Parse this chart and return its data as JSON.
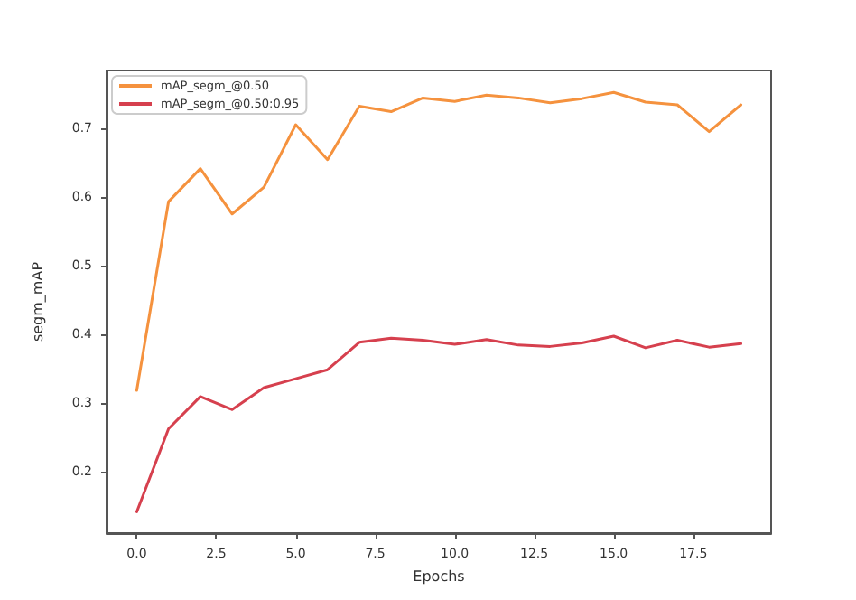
{
  "chart_data": {
    "type": "line",
    "xlabel": "Epochs",
    "ylabel": "segm_mAP",
    "x": [
      0,
      1,
      2,
      3,
      4,
      5,
      6,
      7,
      8,
      9,
      10,
      11,
      12,
      13,
      14,
      15,
      16,
      17,
      18,
      19
    ],
    "series": [
      {
        "name": "mAP_segm_@0.50",
        "color": "#f5923e",
        "values": [
          0.318,
          0.593,
          0.641,
          0.575,
          0.614,
          0.705,
          0.654,
          0.732,
          0.724,
          0.744,
          0.739,
          0.748,
          0.744,
          0.737,
          0.743,
          0.752,
          0.738,
          0.734,
          0.695,
          0.734
        ]
      },
      {
        "name": "mAP_segm_@0.50:0.95",
        "color": "#d6404e",
        "values": [
          0.141,
          0.262,
          0.309,
          0.29,
          0.322,
          0.335,
          0.348,
          0.388,
          0.394,
          0.391,
          0.385,
          0.392,
          0.384,
          0.382,
          0.387,
          0.397,
          0.38,
          0.391,
          0.381,
          0.386
        ]
      }
    ],
    "xlim": [
      -0.95,
      19.95
    ],
    "xticks": [
      {
        "value": 0,
        "label": "0.0"
      },
      {
        "value": 2.5,
        "label": "2.5"
      },
      {
        "value": 5,
        "label": "5.0"
      },
      {
        "value": 7.5,
        "label": "7.5"
      },
      {
        "value": 10,
        "label": "10.0"
      },
      {
        "value": 12.5,
        "label": "12.5"
      },
      {
        "value": 15,
        "label": "15.0"
      },
      {
        "value": 17.5,
        "label": "17.5"
      }
    ],
    "ylim": [
      0.11,
      0.784
    ],
    "yticks": [
      0.2,
      0.3,
      0.4,
      0.5,
      0.6,
      0.7
    ],
    "grid": false,
    "legend": "top left",
    "marker": "none",
    "line_style": "solid"
  }
}
